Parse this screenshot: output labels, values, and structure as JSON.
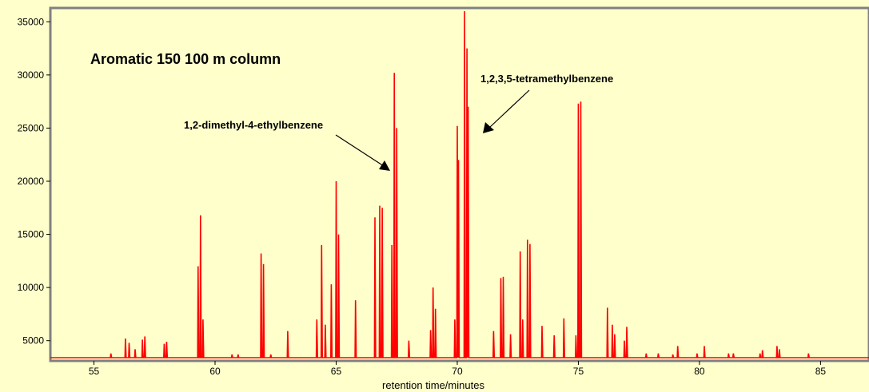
{
  "chart_data": {
    "type": "line",
    "title": "Aromatic 150  100 m column",
    "xlabel": "retention time/minutes",
    "ylabel": "",
    "xlim": [
      53.2,
      87.0
    ],
    "ylim": [
      3100,
      36300
    ],
    "xticks": [
      55,
      60,
      65,
      70,
      75,
      80,
      85
    ],
    "yticks": [
      5000,
      10000,
      15000,
      20000,
      25000,
      30000,
      35000
    ],
    "grid": false,
    "colors": {
      "background": "#ffffcc",
      "line": "#ff0000",
      "frame": "#808080"
    },
    "baseline": 3400,
    "peaks": [
      [
        55.7,
        3800
      ],
      [
        56.3,
        5200
      ],
      [
        56.45,
        4800
      ],
      [
        56.7,
        4200
      ],
      [
        57.0,
        5100
      ],
      [
        57.1,
        5400
      ],
      [
        57.9,
        4700
      ],
      [
        58.0,
        4900
      ],
      [
        59.3,
        12000
      ],
      [
        59.4,
        16800
      ],
      [
        59.5,
        7000
      ],
      [
        60.7,
        3700
      ],
      [
        60.95,
        3700
      ],
      [
        61.9,
        13200
      ],
      [
        62.0,
        12200
      ],
      [
        62.3,
        3700
      ],
      [
        63.0,
        5900
      ],
      [
        64.2,
        7000
      ],
      [
        64.4,
        14000
      ],
      [
        64.55,
        6500
      ],
      [
        64.8,
        10300
      ],
      [
        65.0,
        20000
      ],
      [
        65.1,
        15000
      ],
      [
        65.8,
        8800
      ],
      [
        66.6,
        16600
      ],
      [
        66.8,
        17700
      ],
      [
        66.9,
        17500
      ],
      [
        67.3,
        14000
      ],
      [
        67.4,
        30200
      ],
      [
        67.5,
        25000
      ],
      [
        68.0,
        5000
      ],
      [
        68.9,
        6000
      ],
      [
        69.0,
        10000
      ],
      [
        69.1,
        8000
      ],
      [
        69.9,
        7000
      ],
      [
        70.0,
        25200
      ],
      [
        70.05,
        22000
      ],
      [
        70.3,
        36000
      ],
      [
        70.4,
        32500
      ],
      [
        70.45,
        27000
      ],
      [
        71.5,
        5900
      ],
      [
        71.8,
        10900
      ],
      [
        71.9,
        11000
      ],
      [
        72.2,
        5600
      ],
      [
        72.6,
        13400
      ],
      [
        72.7,
        7000
      ],
      [
        72.9,
        14500
      ],
      [
        73.0,
        14100
      ],
      [
        73.5,
        6400
      ],
      [
        74.0,
        5500
      ],
      [
        74.4,
        7100
      ],
      [
        74.9,
        5500
      ],
      [
        75.0,
        27300
      ],
      [
        75.1,
        27500
      ],
      [
        76.2,
        8100
      ],
      [
        76.4,
        6500
      ],
      [
        76.5,
        5600
      ],
      [
        76.9,
        5000
      ],
      [
        77.0,
        6300
      ],
      [
        77.8,
        3800
      ],
      [
        78.3,
        3800
      ],
      [
        78.9,
        3700
      ],
      [
        79.1,
        4500
      ],
      [
        79.9,
        3800
      ],
      [
        80.2,
        4500
      ],
      [
        81.2,
        3800
      ],
      [
        81.4,
        3800
      ],
      [
        82.5,
        3800
      ],
      [
        82.6,
        4100
      ],
      [
        83.2,
        4500
      ],
      [
        83.3,
        4200
      ],
      [
        84.5,
        3800
      ]
    ],
    "annotations": [
      {
        "text": "1,2-dimethyl-4-ethylbenzene",
        "target_x": 67.3,
        "target_y": 21200
      },
      {
        "text": "1,2,3,5-tetramethylbenzene",
        "target_x": 70.9,
        "target_y": 25200
      }
    ]
  }
}
